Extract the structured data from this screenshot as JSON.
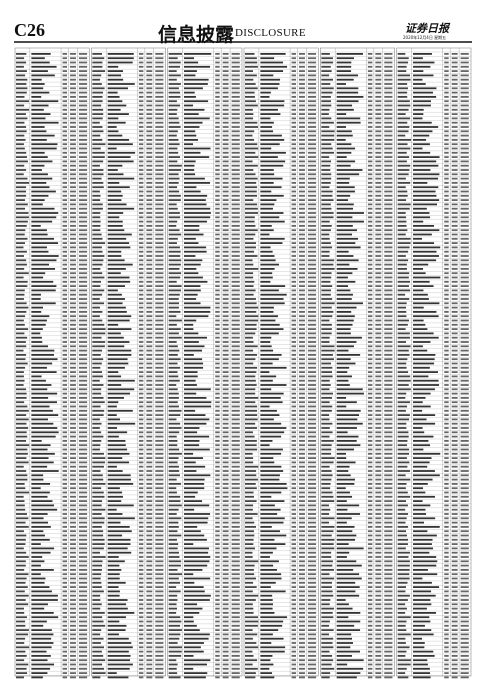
{
  "header": {
    "page_number": "C26",
    "section": "信息披露",
    "section_en": "DISCLOSURE",
    "masthead": "证券日报",
    "date": "2020年12月4日 星期五"
  }
}
